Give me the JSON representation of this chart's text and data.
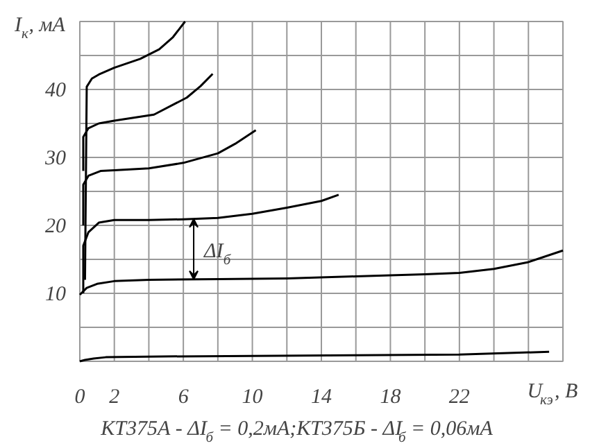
{
  "chart_data": {
    "type": "line",
    "xlabel": "U$_{кэ}$, В",
    "ylabel": "I$_{к}$, мА",
    "xlim": [
      0,
      28
    ],
    "ylim": [
      0,
      50
    ],
    "xticks": [
      0,
      {
        "value": 2,
        "label": "2"
      },
      {
        "value": 4,
        "label": null
      },
      6,
      {
        "value": 8,
        "label": null
      },
      10,
      {
        "value": 12,
        "label": null
      },
      14,
      {
        "value": 16,
        "label": null
      },
      18,
      {
        "value": 20,
        "label": null
      },
      22,
      {
        "value": 24,
        "label": null
      },
      {
        "value": 26,
        "label": null
      },
      {
        "value": 28,
        "label": null
      }
    ],
    "yticks": [
      {
        "value": 0,
        "label": null
      },
      {
        "value": 5,
        "label": null
      },
      10,
      {
        "value": 15,
        "label": null
      },
      20,
      {
        "value": 25,
        "label": null
      },
      30,
      {
        "value": 35,
        "label": null
      },
      40,
      {
        "value": 45,
        "label": null
      },
      {
        "value": 50,
        "label": null
      }
    ],
    "grid": true,
    "marker": "none",
    "line_style": "solid",
    "series": [
      {
        "color": "#000000",
        "x": [
          0,
          0.3,
          0.8,
          1.5,
          4,
          10,
          16,
          22,
          27.2
        ],
        "values": [
          0,
          0.2,
          0.4,
          0.6,
          0.7,
          0.8,
          0.9,
          1.0,
          1.4
        ]
      },
      {
        "color": "#000000",
        "x": [
          0,
          0.4,
          1,
          2,
          4,
          8,
          12,
          16,
          20,
          22,
          24,
          26,
          28
        ],
        "values": [
          9.8,
          10.8,
          11.4,
          11.8,
          12,
          12.1,
          12.2,
          12.5,
          12.8,
          13,
          13.6,
          14.6,
          16.3
        ]
      },
      {
        "color": "#000000",
        "x": [
          0.2,
          0.2,
          0.5,
          1.1,
          2,
          4,
          6,
          8,
          10,
          12,
          14,
          15
        ],
        "values": [
          10,
          17,
          19,
          20.4,
          20.8,
          20.8,
          20.9,
          21.1,
          21.7,
          22.6,
          23.6,
          24.5
        ]
      },
      {
        "color": "#000000",
        "x": [
          0.2,
          0.2,
          0.5,
          1.2,
          2,
          4,
          6,
          8,
          9,
          10.2
        ],
        "values": [
          20,
          26,
          27.3,
          28,
          28.1,
          28.4,
          29.2,
          30.6,
          32,
          34
        ]
      },
      {
        "color": "#000000",
        "x": [
          0.2,
          0.2,
          0.5,
          1.1,
          2,
          4.3,
          6.2,
          7,
          7.7
        ],
        "values": [
          28,
          33,
          34.3,
          35,
          35.4,
          36.3,
          38.8,
          40.5,
          42.3
        ]
      },
      {
        "color": "#000000",
        "x": [
          0.3,
          0.4,
          0.7,
          1.1,
          2,
          3.5,
          4.6,
          5.4,
          6.1
        ],
        "values": [
          12,
          40.4,
          41.6,
          42.2,
          43.2,
          44.5,
          45.9,
          47.7,
          50
        ]
      }
    ],
    "annotations": [
      "ΔI$_{б}$",
      "КТ375А - ΔI$_{б}$ = 0,2мА;КТ375Б - ΔI$_{б}$ = 0,06мА"
    ]
  }
}
